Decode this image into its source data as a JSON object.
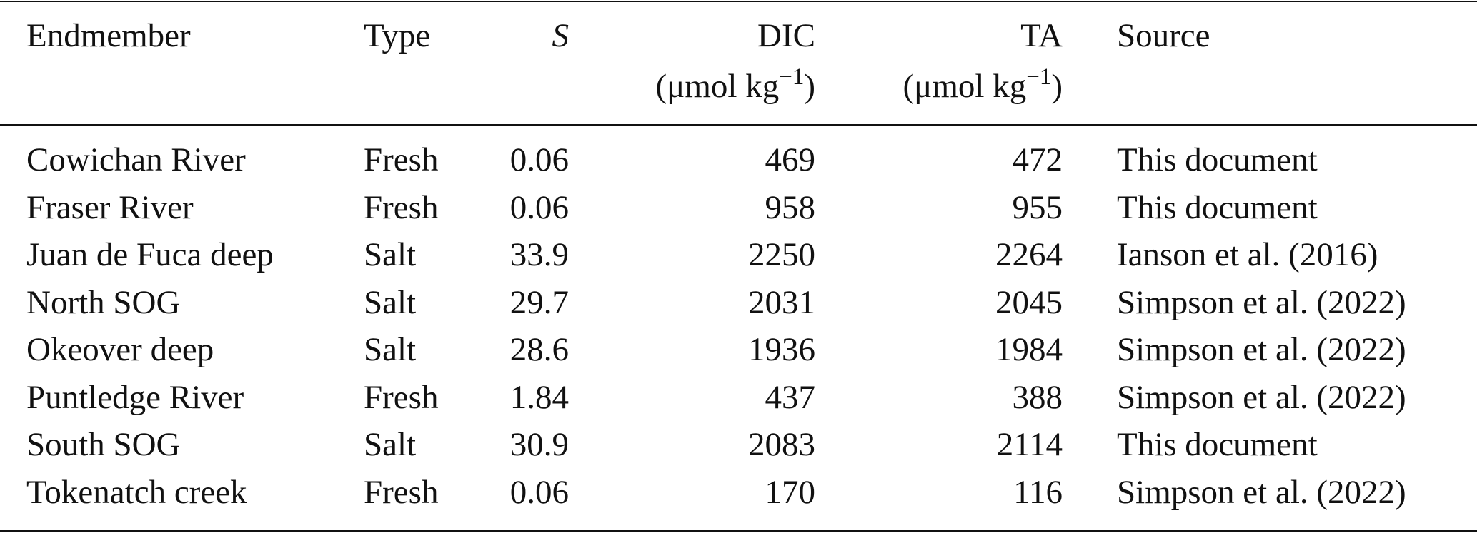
{
  "table": {
    "header": [
      {
        "label": "Endmember"
      },
      {
        "label": "Type"
      },
      {
        "label": "S"
      },
      {
        "label": "DIC",
        "unit": "(μmol kg",
        "unit_exp": "−1",
        "unit_close": ")"
      },
      {
        "label": "TA",
        "unit": "(μmol kg",
        "unit_exp": "−1",
        "unit_close": ")"
      },
      {
        "label": "Source"
      }
    ],
    "rows": [
      [
        "Cowichan River",
        "Fresh",
        "0.06",
        "469",
        "472",
        "This document"
      ],
      [
        "Fraser River",
        "Fresh",
        "0.06",
        "958",
        "955",
        "This document"
      ],
      [
        "Juan de Fuca deep",
        "Salt",
        "33.9",
        "2250",
        "2264",
        "Ianson et al. (2016)"
      ],
      [
        "North SOG",
        "Salt",
        "29.7",
        "2031",
        "2045",
        "Simpson et al. (2022)"
      ],
      [
        "Okeover deep",
        "Salt",
        "28.6",
        "1936",
        "1984",
        "Simpson et al. (2022)"
      ],
      [
        "Puntledge River",
        "Fresh",
        "1.84",
        "437",
        "388",
        "Simpson et al. (2022)"
      ],
      [
        "South SOG",
        "Salt",
        "30.9",
        "2083",
        "2114",
        "This document"
      ],
      [
        "Tokenatch creek",
        "Fresh",
        "0.06",
        "170",
        "116",
        "Simpson et al. (2022)"
      ]
    ]
  }
}
